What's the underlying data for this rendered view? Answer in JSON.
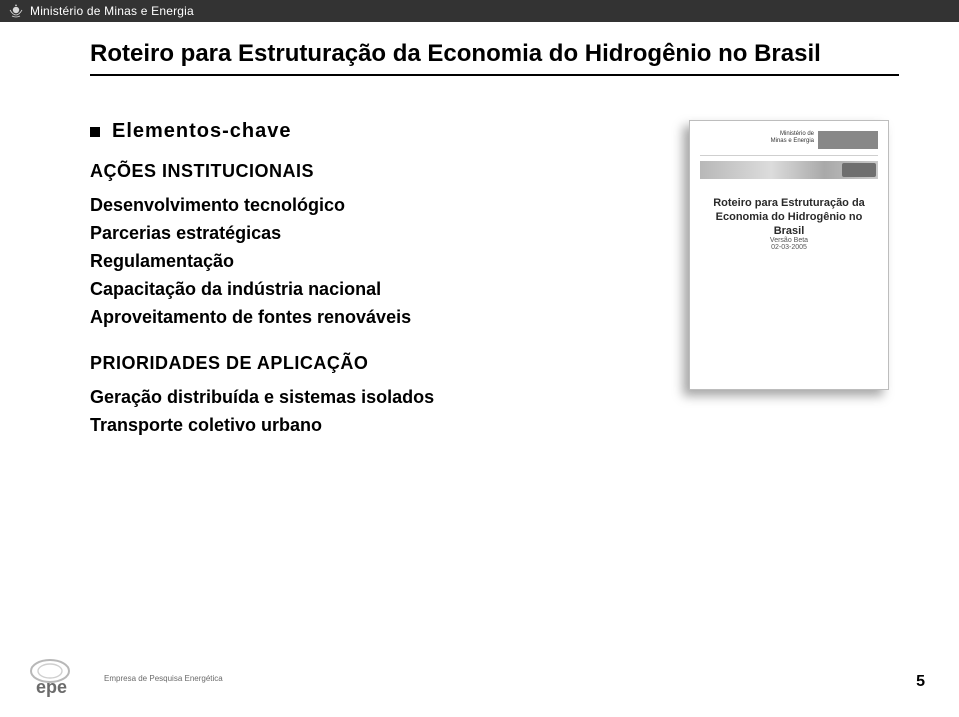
{
  "topbar": {
    "org": "Ministério de Minas e Energia",
    "text_color": "#ffffff",
    "bg_color": "#333333"
  },
  "title": "Roteiro para Estruturação da Economia do Hidrogênio no Brasil",
  "section": {
    "heading": "Elementos-chave",
    "sub1": "AÇÕES INSTITUCIONAIS",
    "items1": [
      "Desenvolvimento tecnológico",
      "Parcerias estratégicas",
      "Regulamentação",
      "Capacitação da indústria nacional",
      "Aproveitamento de fontes renováveis"
    ],
    "sub2": "PRIORIDADES DE APLICAÇÃO",
    "items2": [
      "Geração distribuída e sistemas isolados",
      "Transporte coletivo urbano"
    ]
  },
  "thumbnail": {
    "header_small": "Ministério de\nMinas e Energia",
    "title": "Roteiro para Estruturação da Economia do Hidrogênio no Brasil",
    "subtitle": "Versão Beta\n02-03-2005"
  },
  "footer": {
    "logo_label": "epe",
    "logo_sub": "Empresa de Pesquisa Energética",
    "page_number": "5"
  },
  "colors": {
    "text": "#000000",
    "rule": "#000000",
    "shadow": "rgba(0,0,0,0.35)",
    "logo_ring": "#b8b8b8",
    "logo_text": "#6b6b6b"
  }
}
